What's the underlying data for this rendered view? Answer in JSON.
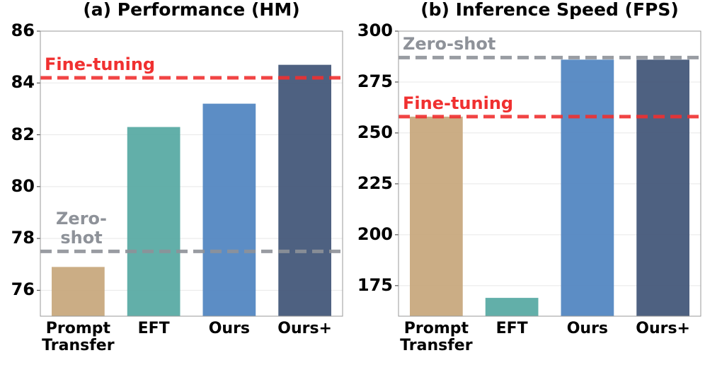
{
  "chart_data": [
    {
      "type": "bar",
      "title": "(a) Performance (HM)",
      "categories": [
        "Prompt Transfer",
        "EFT",
        "Ours",
        "Ours+"
      ],
      "values": [
        76.9,
        82.3,
        83.2,
        84.7
      ],
      "colors": [
        "#c8a97e",
        "#5aaba4",
        "#5387c2",
        "#44597a"
      ],
      "ylim": [
        75,
        86
      ],
      "yticks": [
        76,
        78,
        80,
        82,
        84,
        86
      ],
      "grid": true,
      "reference_lines": [
        {
          "name": "Fine-tuning",
          "value": 84.2,
          "color": "#f03030"
        },
        {
          "name": "Zero-shot",
          "value": 77.5,
          "color": "#8e9299"
        }
      ]
    },
    {
      "type": "bar",
      "title": "(b) Inference Speed (FPS)",
      "categories": [
        "Prompt Transfer",
        "EFT",
        "Ours",
        "Ours+"
      ],
      "values": [
        258,
        169,
        286,
        286
      ],
      "colors": [
        "#c8a97e",
        "#5aaba4",
        "#5387c2",
        "#44597a"
      ],
      "ylim": [
        160,
        300
      ],
      "yticks": [
        175,
        200,
        225,
        250,
        275,
        300
      ],
      "grid": true,
      "reference_lines": [
        {
          "name": "Zero-shot",
          "value": 287,
          "color": "#8e9299"
        },
        {
          "name": "Fine-tuning",
          "value": 258,
          "color": "#f03030"
        }
      ]
    }
  ]
}
